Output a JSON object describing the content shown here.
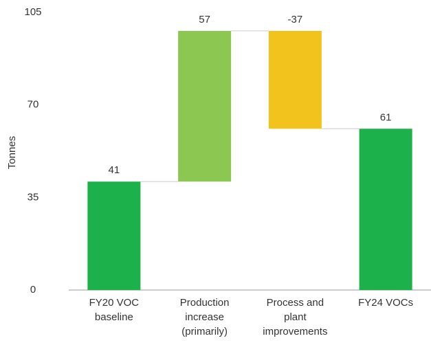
{
  "chart_data": {
    "type": "waterfall",
    "y_label": "Tonnes",
    "categories": [
      "FY20 VOC baseline",
      "Production increase (primarily)",
      "Process and plant improvements",
      "FY24 VOCs"
    ],
    "values": [
      41,
      57,
      -37,
      61
    ],
    "colors": [
      "#1db14b",
      "#8cc751",
      "#f1c31c",
      "#1db14b"
    ],
    "ylim": [
      0,
      105
    ],
    "yticks": [
      0,
      35,
      70,
      105
    ],
    "grid": false
  }
}
